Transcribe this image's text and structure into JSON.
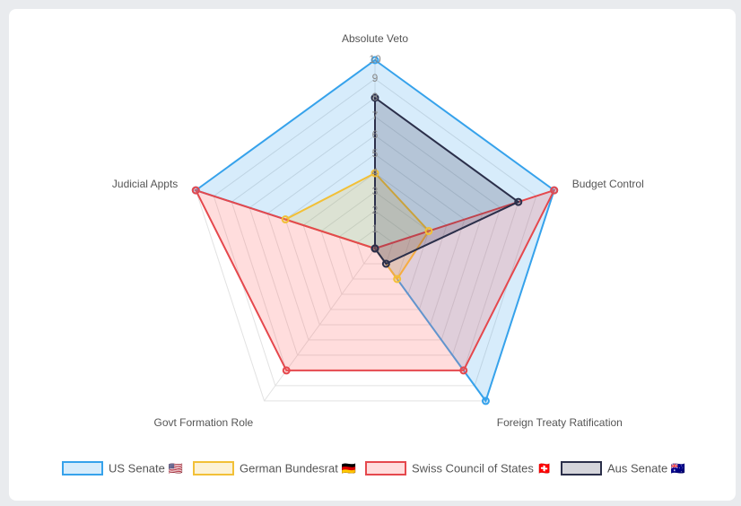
{
  "chart_data": {
    "type": "radar",
    "categories": [
      "Absolute Veto",
      "Budget Control",
      "Foreign Treaty Ratification",
      "Govt Formation Role",
      "Judicial Appts"
    ],
    "rlim": [
      0,
      10
    ],
    "rticks": [
      1,
      2,
      3,
      4,
      5,
      6,
      7,
      8,
      9,
      10
    ],
    "grid": true,
    "legend": "bottom",
    "series": [
      {
        "name": "US Senate 🇺🇸",
        "color": "#36a2eb",
        "fill": "rgba(54,162,235,0.2)",
        "values": [
          10,
          10,
          10,
          0,
          10
        ]
      },
      {
        "name": "German Bundesrat 🇩🇪",
        "color": "#f2c037",
        "fill": "rgba(242,192,55,0.2)",
        "values": [
          4,
          3,
          2,
          0,
          5
        ]
      },
      {
        "name": "Swiss Council of States 🇨🇭",
        "color": "#e5484d",
        "fill": "rgba(255,99,99,0.22)",
        "values": [
          0,
          10,
          8,
          8,
          10
        ]
      },
      {
        "name": "Aus Senate 🇦🇺",
        "color": "#2b2f4a",
        "fill": "rgba(43,47,74,0.2)",
        "values": [
          8,
          8,
          1,
          0,
          0
        ]
      }
    ]
  }
}
